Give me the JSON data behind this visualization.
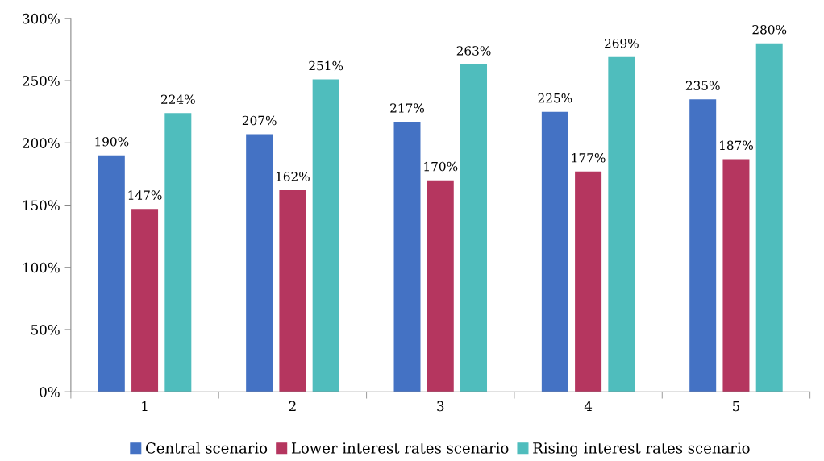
{
  "chart_data": {
    "type": "bar",
    "categories": [
      "1",
      "2",
      "3",
      "4",
      "5"
    ],
    "series": [
      {
        "name": "Central scenario",
        "color": "#4472c4",
        "values": [
          190,
          207,
          217,
          225,
          235
        ],
        "value_labels": [
          "190%",
          "207%",
          "217%",
          "225%",
          "235%"
        ]
      },
      {
        "name": "Lower interest rates scenario",
        "color": "#b5365f",
        "values": [
          147,
          162,
          170,
          177,
          187
        ],
        "value_labels": [
          "147%",
          "162%",
          "170%",
          "177%",
          "187%"
        ]
      },
      {
        "name": "Rising interest rates scenario",
        "color": "#4fbdbd",
        "values": [
          224,
          251,
          263,
          269,
          280
        ],
        "value_labels": [
          "224%",
          "251%",
          "263%",
          "269%",
          "280%"
        ]
      }
    ],
    "ylim": [
      0,
      300
    ],
    "yticks": [
      {
        "value": 0,
        "label": "0%"
      },
      {
        "value": 50,
        "label": "50%"
      },
      {
        "value": 100,
        "label": "100%"
      },
      {
        "value": 150,
        "label": "150%"
      },
      {
        "value": 200,
        "label": "200%"
      },
      {
        "value": 250,
        "label": "250%"
      },
      {
        "value": 300,
        "label": "300%"
      }
    ],
    "grid": false,
    "legend": "bottom"
  }
}
